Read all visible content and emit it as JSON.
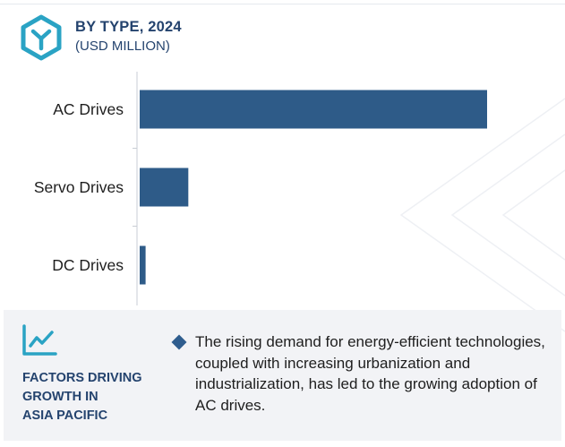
{
  "header": {
    "title": "BY TYPE, 2024",
    "subtitle": "(USD MILLION)",
    "icon": "hexagon-y-icon"
  },
  "chart_data": {
    "type": "bar",
    "orientation": "horizontal",
    "title": "BY TYPE, 2024",
    "subtitle": "(USD MILLION)",
    "categories": [
      "AC Drives",
      "Servo Drives",
      "DC Drives"
    ],
    "values": [
      100,
      14,
      1.7
    ],
    "value_scale": "relative (no values or axis printed)",
    "bar_color": "#2e5b88",
    "grid": false
  },
  "factors": {
    "icon": "trend-chart-icon",
    "heading_lines": [
      "FACTORS DRIVING",
      "GROWTH IN",
      "ASIA PACIFIC"
    ],
    "text": "The rising demand for energy-efficient technologies, coupled with increasing urbanization and industrialization, has led to the growing adoption of AC drives.",
    "bullet_color": "#2f5d8e"
  }
}
